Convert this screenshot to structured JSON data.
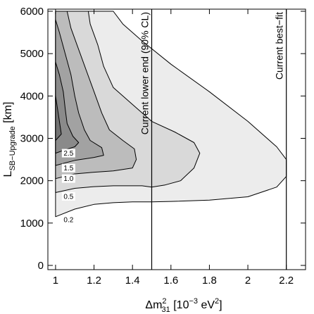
{
  "chart_data": {
    "type": "contour",
    "xlabel": {
      "main": "Δm",
      "sup": "2",
      "sub": "31",
      "rest": " [10",
      "rest_sup": "−3",
      "rest2": " eV",
      "rest2_sup": "2",
      "close": "]"
    },
    "ylabel": {
      "main": "L",
      "sub": "SB−Upgrade",
      "rest": " [km]"
    },
    "xlim": [
      0.96,
      2.3
    ],
    "ylim": [
      -100,
      6050
    ],
    "x_ticks": [
      {
        "value": 1.0,
        "label": "1"
      },
      {
        "value": 1.2,
        "label": "1.2"
      },
      {
        "value": 1.4,
        "label": "1.4"
      },
      {
        "value": 1.6,
        "label": "1.6"
      },
      {
        "value": 1.8,
        "label": "1.8"
      },
      {
        "value": 2.0,
        "label": "2"
      },
      {
        "value": 2.2,
        "label": "2.2"
      }
    ],
    "y_ticks": [
      {
        "value": 0,
        "label": "0"
      },
      {
        "value": 1000,
        "label": "1000"
      },
      {
        "value": 2000,
        "label": "2000"
      },
      {
        "value": 3000,
        "label": "3000"
      },
      {
        "value": 4000,
        "label": "4000"
      },
      {
        "value": 5000,
        "label": "5000"
      },
      {
        "value": 6000,
        "label": "6000"
      }
    ],
    "contours": [
      {
        "level": "0.2",
        "fill": "#ececec",
        "points": [
          [
            1.0,
            1150
          ],
          [
            1.1,
            1330
          ],
          [
            1.2,
            1440
          ],
          [
            1.3,
            1480
          ],
          [
            1.4,
            1500
          ],
          [
            1.5,
            1500
          ],
          [
            1.6,
            1510
          ],
          [
            1.8,
            1540
          ],
          [
            2.0,
            1620
          ],
          [
            2.15,
            1850
          ],
          [
            2.2,
            2100
          ],
          [
            2.2,
            2500
          ],
          [
            2.15,
            2800
          ],
          [
            2.0,
            3400
          ],
          [
            1.8,
            4100
          ],
          [
            1.6,
            4750
          ],
          [
            1.45,
            5300
          ],
          [
            1.35,
            5700
          ],
          [
            1.3,
            6000
          ],
          [
            1.0,
            6000
          ]
        ]
      },
      {
        "level": "0.5",
        "fill": "#d9d9d9",
        "points": [
          [
            1.0,
            1720
          ],
          [
            1.1,
            1820
          ],
          [
            1.2,
            1860
          ],
          [
            1.3,
            1880
          ],
          [
            1.45,
            1880
          ],
          [
            1.5,
            1850
          ],
          [
            1.57,
            1900
          ],
          [
            1.65,
            2000
          ],
          [
            1.72,
            2300
          ],
          [
            1.75,
            2650
          ],
          [
            1.72,
            2900
          ],
          [
            1.62,
            3150
          ],
          [
            1.5,
            3400
          ],
          [
            1.4,
            3800
          ],
          [
            1.3,
            4200
          ],
          [
            1.25,
            4700
          ],
          [
            1.22,
            5200
          ],
          [
            1.18,
            5700
          ],
          [
            1.17,
            6000
          ],
          [
            1.0,
            6000
          ]
        ]
      },
      {
        "level": "1.0",
        "fill": "#bcbcbc",
        "points": [
          [
            1.0,
            2050
          ],
          [
            1.1,
            2160
          ],
          [
            1.2,
            2200
          ],
          [
            1.3,
            2230
          ],
          [
            1.4,
            2300
          ],
          [
            1.42,
            2500
          ],
          [
            1.41,
            2750
          ],
          [
            1.35,
            2950
          ],
          [
            1.28,
            3200
          ],
          [
            1.24,
            3600
          ],
          [
            1.2,
            4100
          ],
          [
            1.16,
            4600
          ],
          [
            1.12,
            5100
          ],
          [
            1.08,
            5600
          ],
          [
            1.06,
            6000
          ],
          [
            1.0,
            6000
          ]
        ]
      },
      {
        "level": "1.5",
        "fill": "#a2a2a2",
        "points": [
          [
            1.0,
            2360
          ],
          [
            1.1,
            2480
          ],
          [
            1.2,
            2550
          ],
          [
            1.25,
            2600
          ],
          [
            1.24,
            2780
          ],
          [
            1.18,
            2950
          ],
          [
            1.15,
            3200
          ],
          [
            1.12,
            3600
          ],
          [
            1.1,
            4000
          ],
          [
            1.08,
            4500
          ],
          [
            1.05,
            5000
          ],
          [
            1.02,
            5500
          ],
          [
            1.0,
            5800
          ]
        ]
      },
      {
        "level": "2.5",
        "fill": "#8a8a8a",
        "points": [
          [
            1.0,
            2650
          ],
          [
            1.05,
            2730
          ],
          [
            1.1,
            2800
          ],
          [
            1.12,
            2900
          ],
          [
            1.09,
            3050
          ],
          [
            1.06,
            3350
          ],
          [
            1.05,
            3700
          ],
          [
            1.04,
            4100
          ],
          [
            1.02,
            4500
          ],
          [
            1.0,
            4800
          ]
        ]
      },
      {
        "level": "",
        "fill": "#727272",
        "points": [
          [
            1.0,
            2950
          ],
          [
            1.03,
            3100
          ],
          [
            1.02,
            3400
          ],
          [
            1.01,
            3700
          ],
          [
            1.0,
            4000
          ]
        ]
      }
    ],
    "contour_labels": [
      {
        "text": "2.5",
        "x": 1.04,
        "y": 2650
      },
      {
        "text": "1.5",
        "x": 1.04,
        "y": 2300
      },
      {
        "text": "1.0",
        "x": 1.04,
        "y": 2050
      },
      {
        "text": "0.5",
        "x": 1.04,
        "y": 1630
      },
      {
        "text": "0.2",
        "x": 1.04,
        "y": 1080
      }
    ],
    "vertical_lines": [
      {
        "x": 1.5,
        "label": "Current lower end (90% CL)"
      },
      {
        "x": 2.2,
        "label": "Current best−fit"
      }
    ]
  }
}
